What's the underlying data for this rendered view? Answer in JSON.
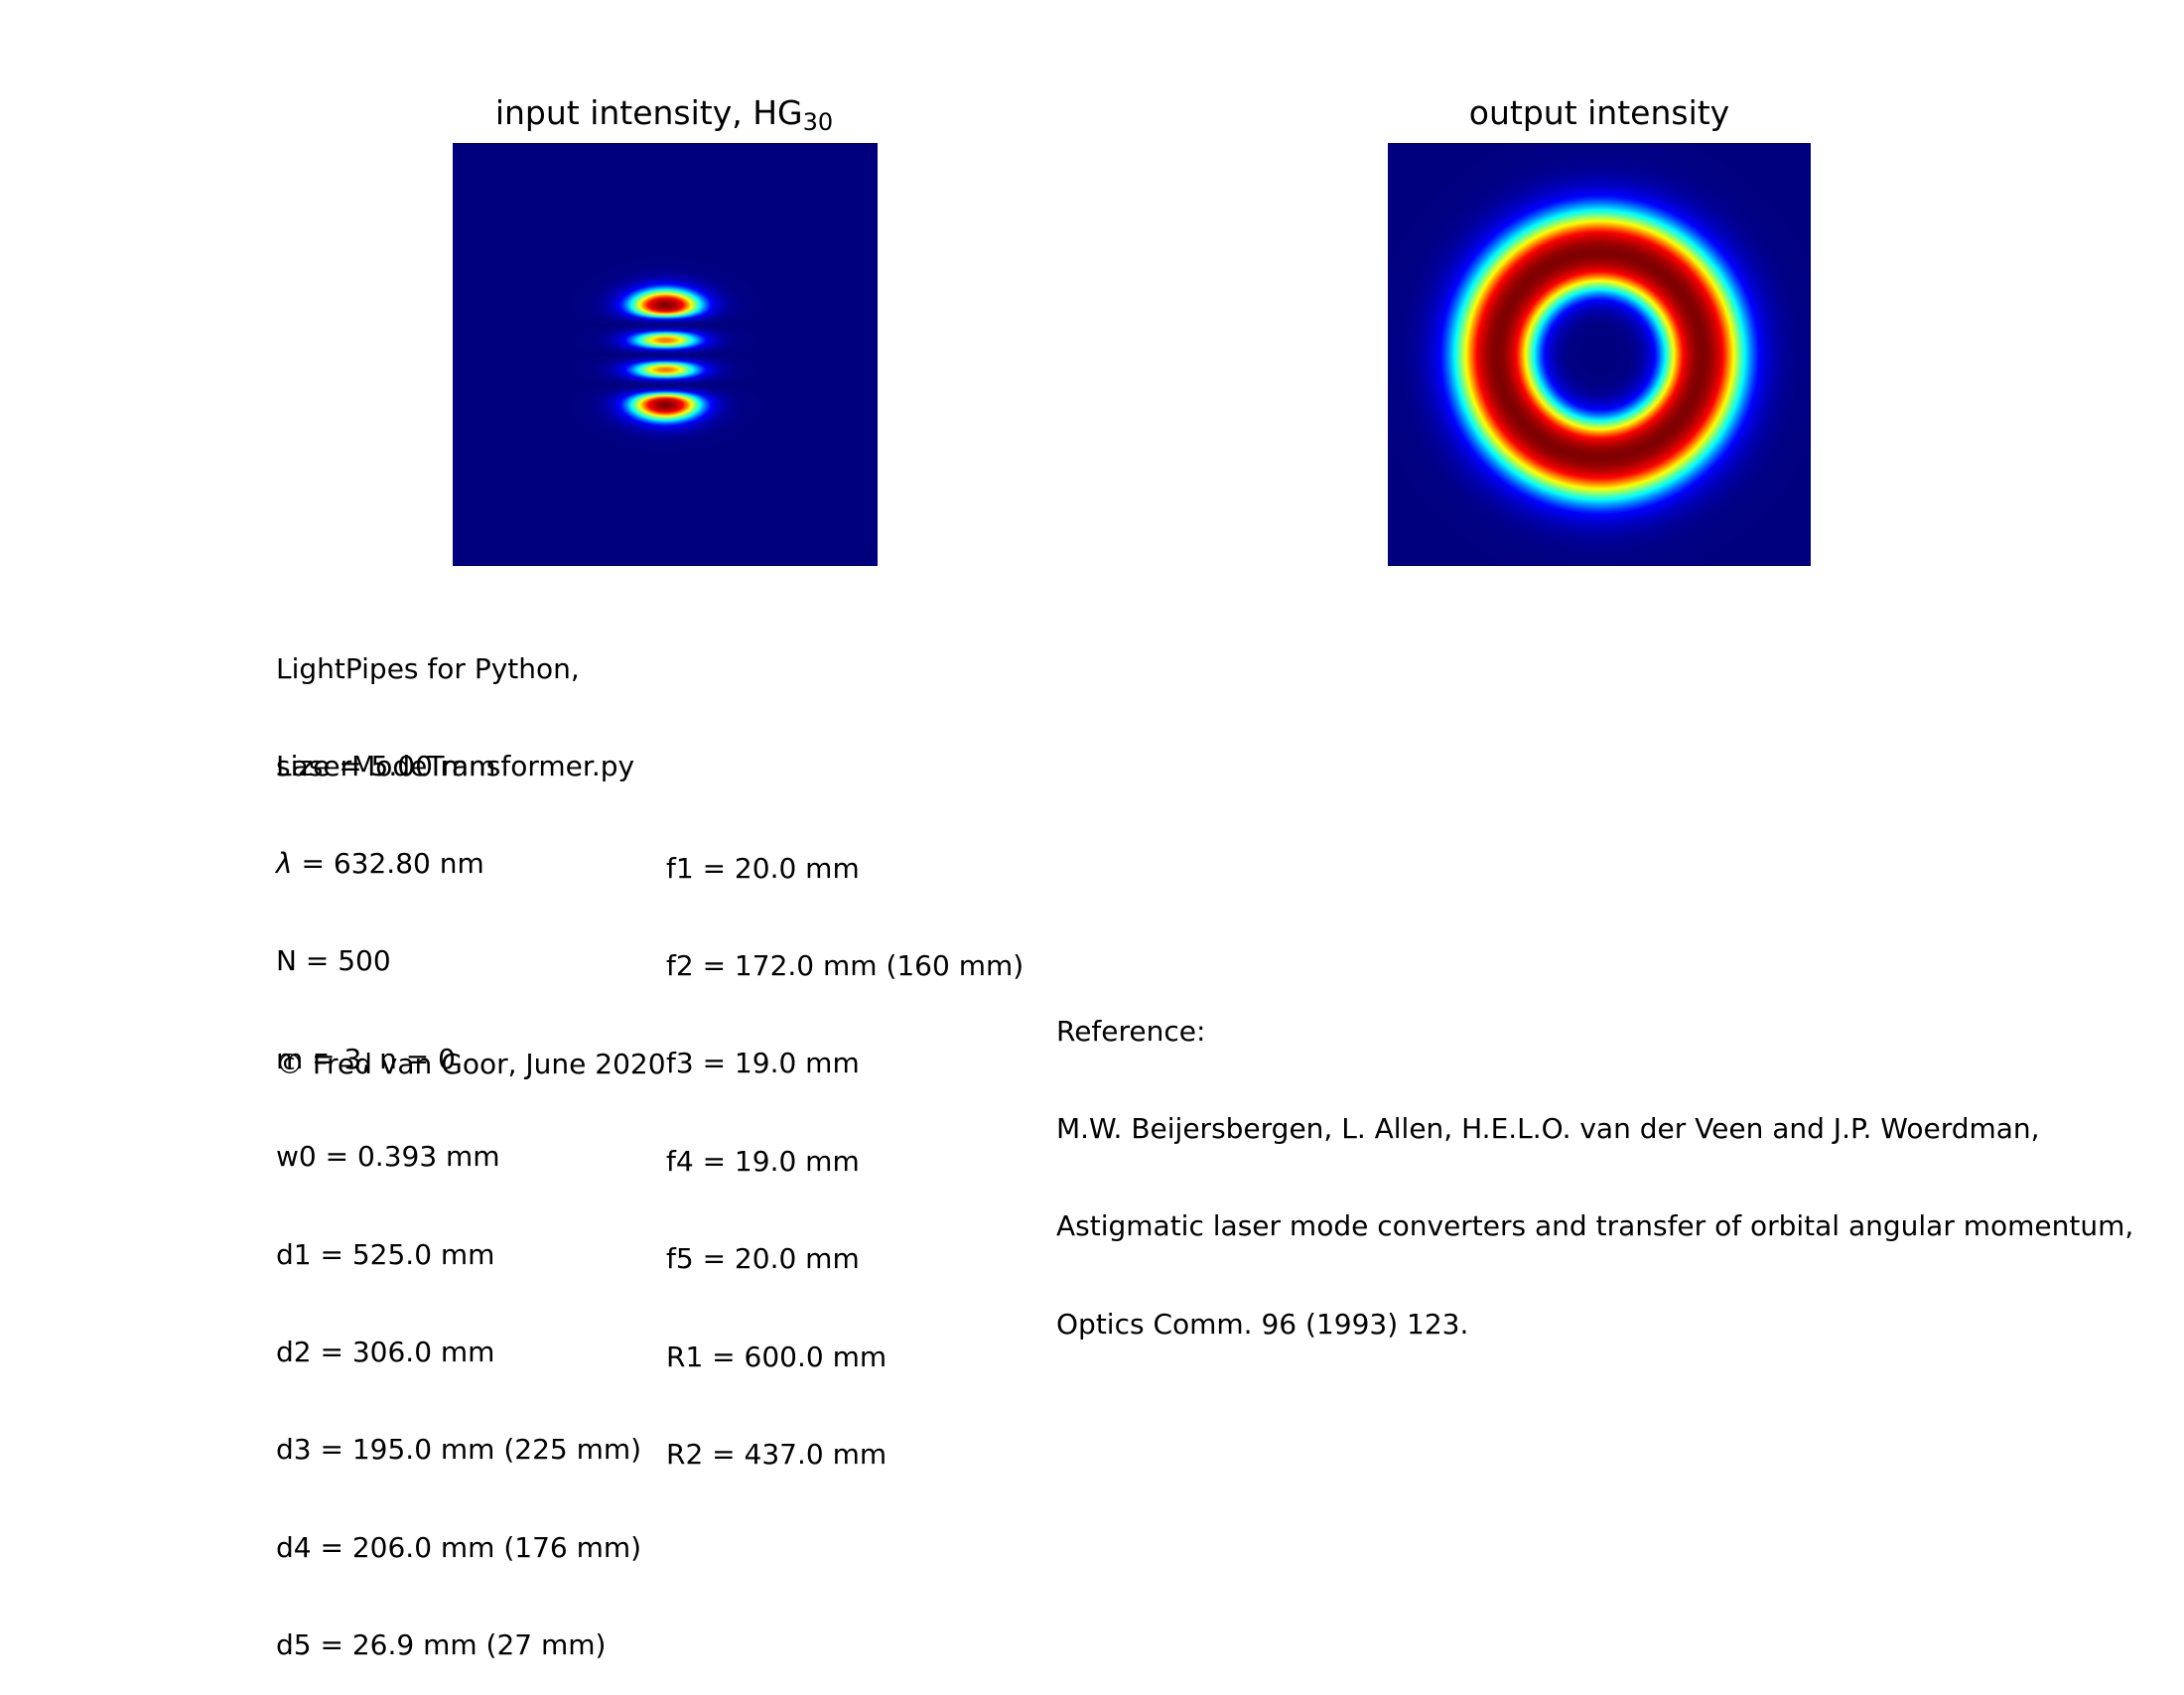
{
  "panels": {
    "input": {
      "title_prefix": "input intensity, HG",
      "title_sub": "30",
      "colormap": [
        "#00007f",
        "#0000ff",
        "#00ffff",
        "#ffff00",
        "#ff0000",
        "#7f0000"
      ]
    },
    "output": {
      "title": "output intensity",
      "colormap": [
        "#00007f",
        "#0000ff",
        "#00ffff",
        "#ffff00",
        "#ff0000",
        "#7f0000"
      ]
    }
  },
  "info": {
    "header": [
      "LightPipes for Python,",
      "LaserModeTransformer.py"
    ],
    "params": [
      "size = 5.00 mm",
      "= 632.80 nm",
      "N = 500",
      "m = 3, n = 0",
      "w0 = 0.393 mm",
      "d1 = 525.0 mm",
      "d2 = 306.0 mm",
      "d3 = 195.0 mm (225 mm)",
      "d4 = 206.0 mm (176 mm)",
      "d5 = 26.9 mm (27 mm)"
    ],
    "lambda_symbol": "λ",
    "lenses": [
      "f1 = 20.0 mm",
      "f2 = 172.0 mm (160 mm)",
      "f3 = 19.0 mm",
      "f4 = 19.0 mm",
      "f5 = 20.0 mm",
      "R1 = 600.0 mm",
      "R2 = 437.0 mm"
    ],
    "copyright": "© Fred van Goor, June 2020"
  },
  "reference": {
    "label": "Reference:",
    "lines": [
      "M.W. Beijersbergen, L. Allen, H.E.L.O. van der Veen and J.P. Woerdman,",
      "Astigmatic laser mode converters and transfer of orbital angular momentum,",
      "Optics Comm. 96 (1993) 123."
    ]
  }
}
